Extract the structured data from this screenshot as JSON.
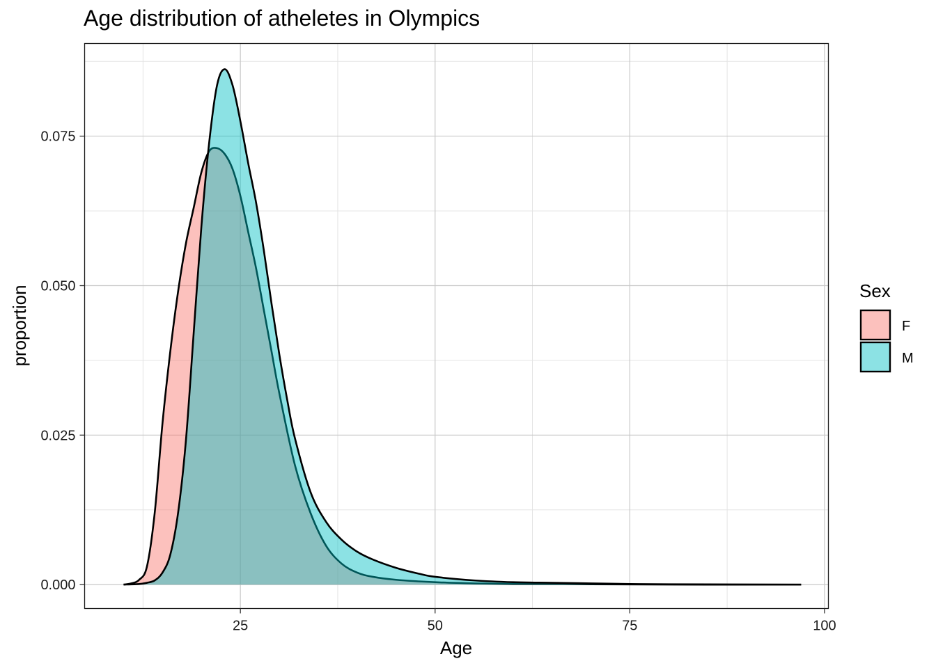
{
  "chart_data": {
    "type": "area",
    "title": "Age distribution of atheletes in Olympics",
    "xlabel": "Age",
    "ylabel": "proportion",
    "xlim": [
      5,
      100.5
    ],
    "ylim": [
      -0.004,
      0.0905
    ],
    "x_ticks": [
      25,
      50,
      75,
      100
    ],
    "x_tick_labels": [
      "25",
      "50",
      "75",
      "100"
    ],
    "y_ticks": [
      0.0,
      0.025,
      0.05,
      0.075
    ],
    "y_tick_labels": [
      "0.000",
      "0.025",
      "0.050",
      "0.075"
    ],
    "grid": true,
    "legend": {
      "title": "Sex",
      "position": "right"
    },
    "series": [
      {
        "name": "F",
        "color": "#F8766D",
        "x": [
          10,
          11,
          12,
          13,
          14,
          15,
          16,
          17,
          18,
          19,
          20,
          21,
          22,
          23,
          24,
          25,
          26,
          27,
          28,
          29,
          30,
          32,
          34,
          36,
          38,
          40,
          42,
          45,
          50,
          55,
          60,
          65,
          70,
          80,
          97
        ],
        "y": [
          0,
          0.0002,
          0.0008,
          0.003,
          0.012,
          0.027,
          0.039,
          0.049,
          0.057,
          0.063,
          0.069,
          0.0725,
          0.073,
          0.072,
          0.0695,
          0.065,
          0.059,
          0.053,
          0.046,
          0.039,
          0.032,
          0.02,
          0.012,
          0.0065,
          0.0035,
          0.002,
          0.0013,
          0.0008,
          0.0004,
          0.0002,
          0.0001,
          0.0001,
          5e-05,
          0,
          0
        ]
      },
      {
        "name": "M",
        "color": "#00BFC4",
        "x": [
          10,
          12,
          13,
          14,
          15,
          16,
          17,
          18,
          19,
          20,
          21,
          22,
          23,
          24,
          25,
          26,
          27,
          28,
          29,
          30,
          31,
          32,
          34,
          36,
          38,
          40,
          42,
          45,
          48,
          50,
          55,
          60,
          65,
          70,
          75,
          80,
          97
        ],
        "y": [
          0,
          0.0001,
          0.0003,
          0.0007,
          0.002,
          0.005,
          0.012,
          0.024,
          0.042,
          0.06,
          0.074,
          0.0835,
          0.0862,
          0.0835,
          0.0775,
          0.0705,
          0.064,
          0.056,
          0.047,
          0.0385,
          0.031,
          0.0245,
          0.0155,
          0.0105,
          0.0075,
          0.0055,
          0.0042,
          0.0028,
          0.0018,
          0.0013,
          0.0007,
          0.0004,
          0.0003,
          0.0002,
          0.0001,
          5e-05,
          0
        ]
      }
    ]
  }
}
